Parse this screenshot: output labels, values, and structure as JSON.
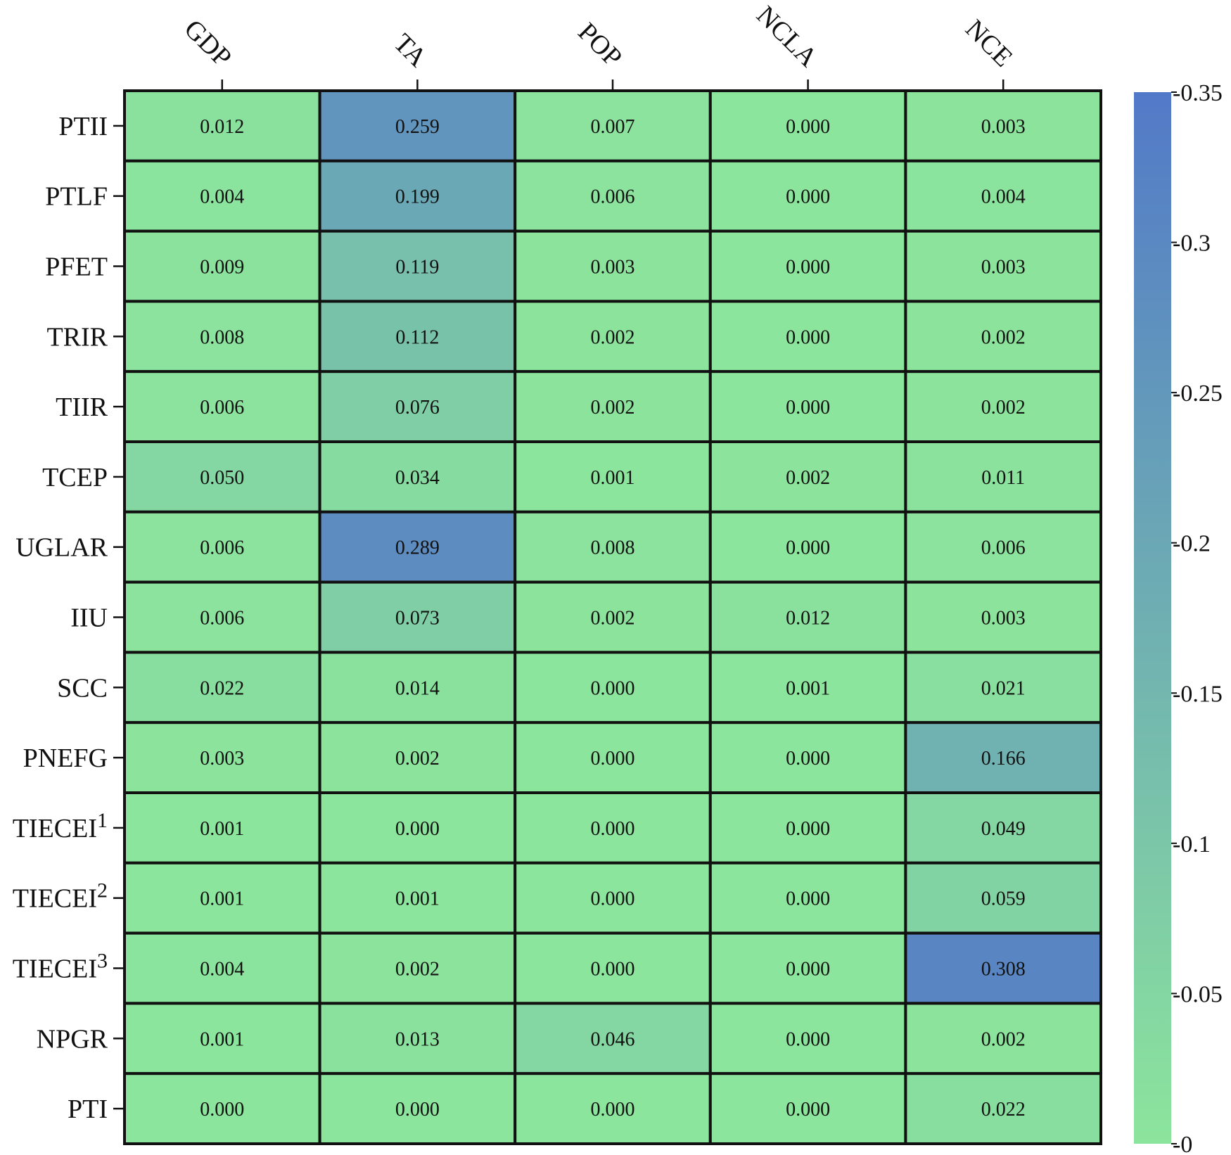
{
  "chart_data": {
    "type": "heatmap",
    "columns": [
      "GDP",
      "TA",
      "POP",
      "NCLA",
      "NCE"
    ],
    "rows": [
      {
        "label": "PTII",
        "sup": ""
      },
      {
        "label": "PTLF",
        "sup": ""
      },
      {
        "label": "PFET",
        "sup": ""
      },
      {
        "label": "TRIR",
        "sup": ""
      },
      {
        "label": "TIIR",
        "sup": ""
      },
      {
        "label": "TCEP",
        "sup": ""
      },
      {
        "label": "UGLAR",
        "sup": ""
      },
      {
        "label": "IIU",
        "sup": ""
      },
      {
        "label": "SCC",
        "sup": ""
      },
      {
        "label": "PNEFG",
        "sup": ""
      },
      {
        "label": "TIECEI",
        "sup": "1"
      },
      {
        "label": "TIECEI",
        "sup": "2"
      },
      {
        "label": "TIECEI",
        "sup": "3"
      },
      {
        "label": "NPGR",
        "sup": ""
      },
      {
        "label": "PTI",
        "sup": ""
      }
    ],
    "values": [
      [
        "0.012",
        "0.259",
        "0.007",
        "0.000",
        "0.003"
      ],
      [
        "0.004",
        "0.199",
        "0.006",
        "0.000",
        "0.004"
      ],
      [
        "0.009",
        "0.119",
        "0.003",
        "0.000",
        "0.003"
      ],
      [
        "0.008",
        "0.112",
        "0.002",
        "0.000",
        "0.002"
      ],
      [
        "0.006",
        "0.076",
        "0.002",
        "0.000",
        "0.002"
      ],
      [
        "0.050",
        "0.034",
        "0.001",
        "0.002",
        "0.011"
      ],
      [
        "0.006",
        "0.289",
        "0.008",
        "0.000",
        "0.006"
      ],
      [
        "0.006",
        "0.073",
        "0.002",
        "0.012",
        "0.003"
      ],
      [
        "0.022",
        "0.014",
        "0.000",
        "0.001",
        "0.021"
      ],
      [
        "0.003",
        "0.002",
        "0.000",
        "0.000",
        "0.166"
      ],
      [
        "0.001",
        "0.000",
        "0.000",
        "0.000",
        "0.049"
      ],
      [
        "0.001",
        "0.001",
        "0.000",
        "0.000",
        "0.059"
      ],
      [
        "0.004",
        "0.002",
        "0.000",
        "0.000",
        "0.308"
      ],
      [
        "0.001",
        "0.013",
        "0.046",
        "0.000",
        "0.002"
      ],
      [
        "0.000",
        "0.000",
        "0.000",
        "0.000",
        "0.022"
      ]
    ],
    "colorbar": {
      "min": 0,
      "max": 0.35,
      "ticks": [
        0,
        0.05,
        0.1,
        0.15,
        0.2,
        0.25,
        0.3,
        0.35
      ],
      "tick_labels": [
        "-0",
        "-0.05",
        "-0.1",
        "-0.15",
        "-0.2",
        "-0.25",
        "-0.3",
        "-0.35"
      ],
      "color_low": "#8ce59c",
      "color_high": "#5279c8"
    },
    "title": "",
    "xlabel": "",
    "ylabel": "",
    "grid": false,
    "cell_border_color": "#111111"
  }
}
